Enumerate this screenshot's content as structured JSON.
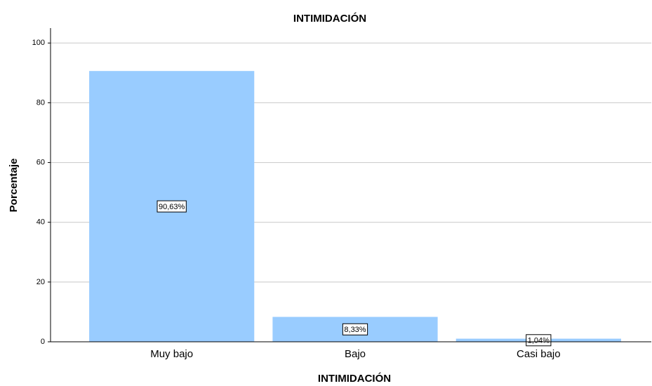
{
  "chart_data": {
    "type": "bar",
    "title": "INTIMIDACIÓN",
    "x_label": "INTIMIDACIÓN",
    "y_label": "Porcentaje",
    "categories": [
      "Muy bajo",
      "Bajo",
      "Casi bajo"
    ],
    "values": [
      90.63,
      8.33,
      1.04
    ],
    "value_labels": [
      "90,63%",
      "8,33%",
      "1,04%"
    ],
    "color": "#99ccff",
    "ylim": [
      0,
      105
    ],
    "yticks": [
      0,
      20,
      40,
      60,
      80,
      100
    ],
    "grid": true
  }
}
